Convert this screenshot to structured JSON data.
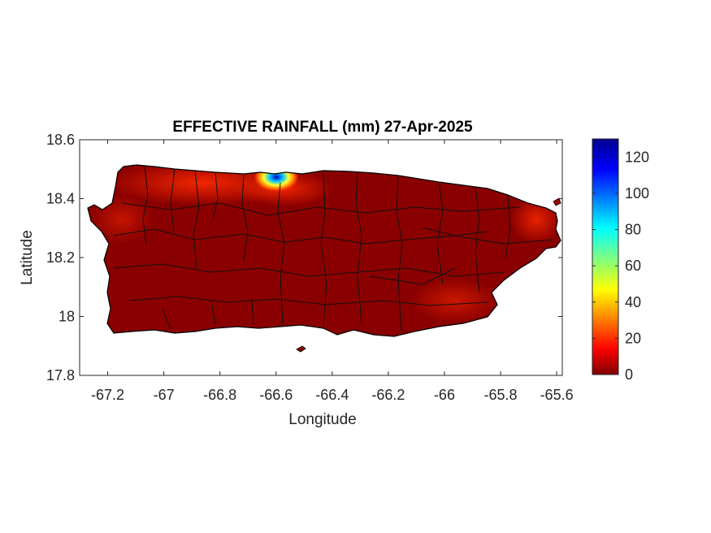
{
  "title": "EFFECTIVE RAINFALL (mm) 27-Apr-2025",
  "xlabel": "Longitude",
  "ylabel": "Latitude",
  "x_ticks": [
    "-67.2",
    "-67",
    "-66.8",
    "-66.6",
    "-66.4",
    "-66.2",
    "-66",
    "-65.8",
    "-65.6"
  ],
  "y_ticks": [
    "18.6",
    "18.4",
    "18.2",
    "18",
    "17.8"
  ],
  "colorbar_ticks": [
    "120",
    "100",
    "80",
    "60",
    "40",
    "20",
    "0"
  ],
  "chart_data": {
    "type": "heatmap",
    "title": "EFFECTIVE RAINFALL (mm) 27-Apr-2025",
    "xlabel": "Longitude",
    "ylabel": "Latitude",
    "xlim": [
      -67.3,
      -65.58
    ],
    "ylim": [
      17.8,
      18.6
    ],
    "x_ticks": [
      -67.2,
      -67,
      -66.8,
      -66.6,
      -66.4,
      -66.2,
      -66,
      -65.8,
      -65.6
    ],
    "y_ticks": [
      18.6,
      18.4,
      18.2,
      18,
      17.8
    ],
    "colorbar": {
      "min": 0,
      "max": 130,
      "ticks": [
        0,
        20,
        40,
        60,
        80,
        100,
        120
      ],
      "colormap": "jet"
    },
    "grid": false,
    "typical_value_range": [
      0,
      25
    ],
    "maximum_area": {
      "lon": -66.6,
      "lat": 18.47,
      "value": 130
    }
  },
  "colors": {
    "low": "#800000",
    "mid_low": "#ff3000",
    "high": "#00008f"
  }
}
